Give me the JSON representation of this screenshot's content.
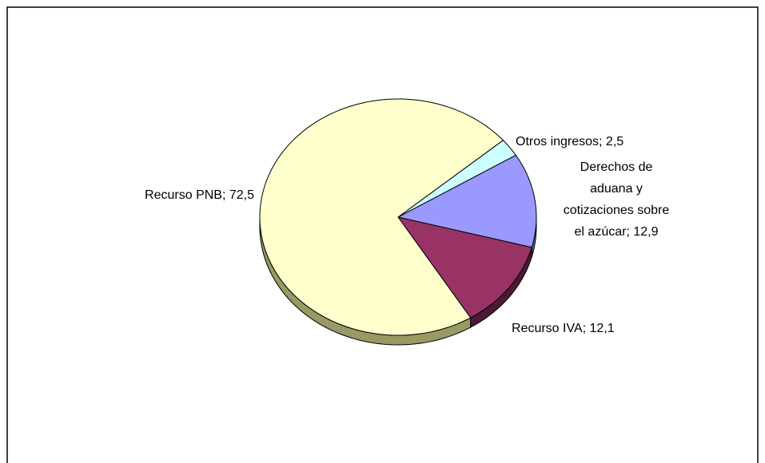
{
  "chart_data": {
    "type": "pie",
    "values": [
      2.5,
      12.9,
      12.1,
      72.5
    ],
    "value_labels": [
      "Otros ingresos; 2,5",
      "Derechos de\naduana y\ncotizaciones sobre\nel azúcar; 12,9",
      "Recurso IVA; 12,1",
      "Recurso PNB; 72,5"
    ],
    "colors": [
      "#CCFFFF",
      "#9999FF",
      "#993366",
      "#FFFFCC"
    ],
    "side_colors": [
      "#7A9999",
      "#5C5C99",
      "#4D1A33",
      "#999966"
    ]
  }
}
